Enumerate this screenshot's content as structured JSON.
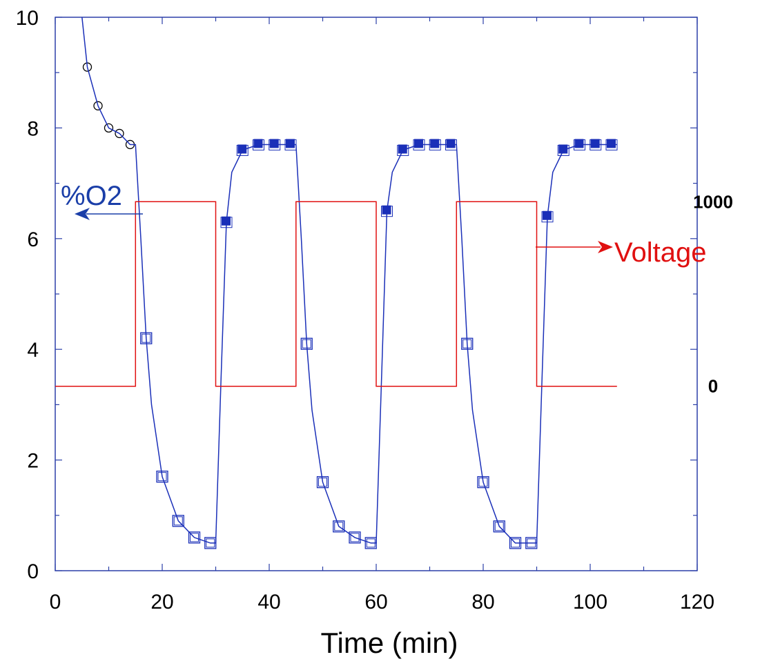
{
  "chart_data": {
    "type": "line",
    "title": "",
    "xlabel": "Time (min)",
    "ylabel": "",
    "y2label": "",
    "xlim": [
      0,
      120
    ],
    "ylim": [
      0,
      10
    ],
    "y2lim": [
      -1000,
      2000
    ],
    "x_ticks": [
      0,
      20,
      40,
      60,
      80,
      100,
      120
    ],
    "y_ticks": [
      0,
      2,
      4,
      6,
      8,
      10
    ],
    "y2_ticks": [
      0,
      1000
    ],
    "grid": false,
    "annotations": [
      {
        "text": "%O2",
        "points_to": "left axis"
      },
      {
        "text": "Voltage",
        "points_to": "right axis"
      }
    ],
    "series": [
      {
        "axis": "left",
        "marker": "open-circle",
        "color": "#000000",
        "points": [
          [
            6,
            9.1
          ],
          [
            8,
            8.4
          ],
          [
            10,
            8.0
          ],
          [
            12,
            7.9
          ],
          [
            14,
            7.7
          ]
        ]
      },
      {
        "axis": "left",
        "marker": "open-square",
        "color": "#1a2fb8",
        "points": [
          [
            17,
            4.2
          ],
          [
            20,
            1.7
          ],
          [
            23,
            0.9
          ],
          [
            26,
            0.6
          ],
          [
            29,
            0.5
          ],
          [
            47,
            4.1
          ],
          [
            50,
            1.6
          ],
          [
            53,
            0.8
          ],
          [
            56,
            0.6
          ],
          [
            59,
            0.5
          ],
          [
            77,
            4.1
          ],
          [
            80,
            1.6
          ],
          [
            83,
            0.8
          ],
          [
            86,
            0.5
          ],
          [
            89,
            0.5
          ]
        ]
      },
      {
        "axis": "left",
        "marker": "filled-square",
        "color": "#1a2fb8",
        "points": [
          [
            32,
            6.3
          ],
          [
            35,
            7.6
          ],
          [
            38,
            7.7
          ],
          [
            41,
            7.7
          ],
          [
            44,
            7.7
          ],
          [
            62,
            6.5
          ],
          [
            65,
            7.6
          ],
          [
            68,
            7.7
          ],
          [
            71,
            7.7
          ],
          [
            74,
            7.7
          ],
          [
            92,
            6.4
          ],
          [
            95,
            7.6
          ],
          [
            98,
            7.7
          ],
          [
            101,
            7.7
          ],
          [
            104,
            7.7
          ]
        ]
      },
      {
        "axis": "left",
        "type": "line",
        "color": "#1a2fb8",
        "points": [
          [
            5,
            10.0
          ],
          [
            6,
            9.1
          ],
          [
            8,
            8.4
          ],
          [
            10,
            8.0
          ],
          [
            12,
            7.9
          ],
          [
            14,
            7.7
          ],
          [
            15,
            7.7
          ],
          [
            16,
            6.0
          ],
          [
            17,
            4.2
          ],
          [
            18,
            3.0
          ],
          [
            20,
            1.7
          ],
          [
            23,
            0.9
          ],
          [
            26,
            0.6
          ],
          [
            29,
            0.5
          ],
          [
            30,
            0.5
          ],
          [
            31,
            3.5
          ],
          [
            32,
            6.3
          ],
          [
            33,
            7.2
          ],
          [
            35,
            7.6
          ],
          [
            38,
            7.7
          ],
          [
            41,
            7.7
          ],
          [
            44,
            7.7
          ],
          [
            45,
            7.7
          ],
          [
            46,
            6.0
          ],
          [
            47,
            4.1
          ],
          [
            48,
            2.9
          ],
          [
            50,
            1.6
          ],
          [
            53,
            0.8
          ],
          [
            56,
            0.6
          ],
          [
            59,
            0.5
          ],
          [
            60,
            0.5
          ],
          [
            61,
            3.5
          ],
          [
            62,
            6.5
          ],
          [
            63,
            7.2
          ],
          [
            65,
            7.6
          ],
          [
            68,
            7.7
          ],
          [
            71,
            7.7
          ],
          [
            74,
            7.7
          ],
          [
            75,
            7.7
          ],
          [
            76,
            6.0
          ],
          [
            77,
            4.1
          ],
          [
            78,
            2.9
          ],
          [
            80,
            1.6
          ],
          [
            83,
            0.8
          ],
          [
            86,
            0.5
          ],
          [
            89,
            0.5
          ],
          [
            90,
            0.5
          ],
          [
            91,
            3.5
          ],
          [
            92,
            6.4
          ],
          [
            93,
            7.2
          ],
          [
            95,
            7.6
          ],
          [
            98,
            7.7
          ],
          [
            101,
            7.7
          ],
          [
            104,
            7.7
          ],
          [
            105,
            7.7
          ]
        ]
      },
      {
        "axis": "right",
        "type": "step",
        "color": "#e01010",
        "points": [
          [
            0,
            0
          ],
          [
            15,
            0
          ],
          [
            15,
            1000
          ],
          [
            30,
            1000
          ],
          [
            30,
            0
          ],
          [
            45,
            0
          ],
          [
            45,
            1000
          ],
          [
            60,
            1000
          ],
          [
            60,
            0
          ],
          [
            75,
            0
          ],
          [
            75,
            1000
          ],
          [
            90,
            1000
          ],
          [
            90,
            0
          ],
          [
            105,
            0
          ]
        ]
      }
    ]
  }
}
